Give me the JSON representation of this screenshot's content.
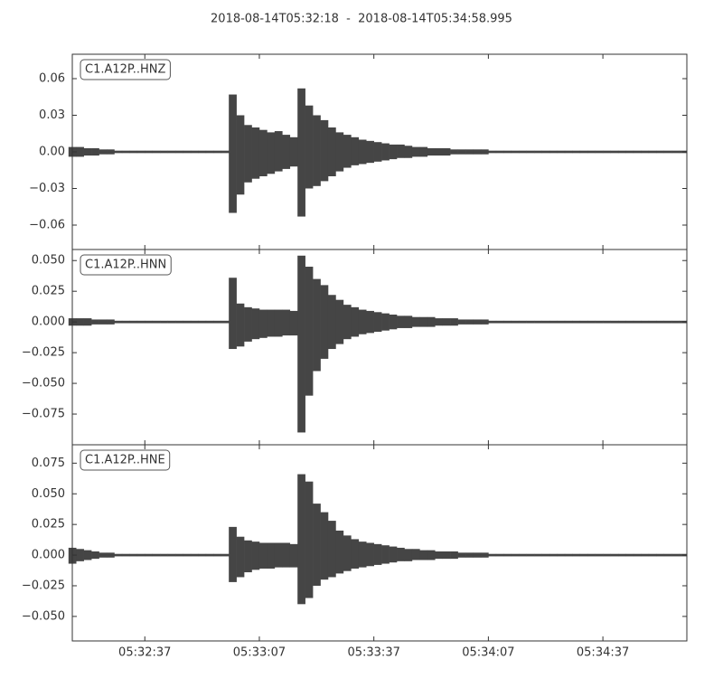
{
  "chart_data": {
    "type": "waveform",
    "title": "2018-08-14T05:32:18  -  2018-08-14T05:34:58.995",
    "xlim": [
      "05:32:18",
      "05:34:58.995"
    ],
    "xticks": [
      "05:32:37",
      "05:33:07",
      "05:33:37",
      "05:34:07",
      "05:34:37"
    ],
    "color": "#454545",
    "x": [
      "05:32:18",
      "05:32:20",
      "05:32:22",
      "05:32:24",
      "05:32:26",
      "05:32:28",
      "05:32:30",
      "05:32:32",
      "05:32:34",
      "05:32:36",
      "05:32:38",
      "05:32:40",
      "05:32:42",
      "05:32:44",
      "05:32:46",
      "05:32:48",
      "05:32:50",
      "05:32:52",
      "05:32:54",
      "05:32:56",
      "05:32:58",
      "05:33:00",
      "05:33:02",
      "05:33:04",
      "05:33:06",
      "05:33:08",
      "05:33:10",
      "05:33:12",
      "05:33:14",
      "05:33:16",
      "05:33:18",
      "05:33:20",
      "05:33:22",
      "05:33:24",
      "05:33:26",
      "05:33:28",
      "05:33:30",
      "05:33:32",
      "05:33:34",
      "05:33:36",
      "05:33:38",
      "05:33:40",
      "05:33:42",
      "05:33:44",
      "05:33:46",
      "05:33:48",
      "05:33:50",
      "05:33:52",
      "05:33:54",
      "05:33:56",
      "05:33:58",
      "05:34:00",
      "05:34:02",
      "05:34:04",
      "05:34:06",
      "05:34:08",
      "05:34:10",
      "05:34:12",
      "05:34:14",
      "05:34:16",
      "05:34:18",
      "05:34:20",
      "05:34:22",
      "05:34:24",
      "05:34:26",
      "05:34:28",
      "05:34:30",
      "05:34:32",
      "05:34:34",
      "05:34:36",
      "05:34:38",
      "05:34:40",
      "05:34:42",
      "05:34:44",
      "05:34:46",
      "05:34:48",
      "05:34:50",
      "05:34:52",
      "05:34:54",
      "05:34:56",
      "05:34:58"
    ],
    "panels": [
      {
        "label": "C1.A12P..HNZ",
        "ylim": [
          -0.08,
          0.08
        ],
        "yticks": [
          0.06,
          0.03,
          {
            "value": 0,
            "label": "0.00"
          },
          {
            "value": -0.03,
            "label": "−0.03"
          },
          {
            "value": -0.06,
            "label": "−0.06"
          }
        ],
        "upper": [
          0.004,
          0.004,
          0.003,
          0.003,
          0.002,
          0.002,
          0.001,
          0.001,
          0.001,
          0.001,
          0.001,
          0.001,
          0.001,
          0.001,
          0.001,
          0.001,
          0.001,
          0.001,
          0.001,
          0.001,
          0.001,
          0.047,
          0.03,
          0.022,
          0.02,
          0.018,
          0.016,
          0.017,
          0.014,
          0.012,
          0.052,
          0.038,
          0.03,
          0.026,
          0.02,
          0.016,
          0.014,
          0.012,
          0.01,
          0.009,
          0.008,
          0.007,
          0.006,
          0.006,
          0.005,
          0.004,
          0.004,
          0.003,
          0.003,
          0.003,
          0.002,
          0.002,
          0.002,
          0.002,
          0.002,
          0.001,
          0.001,
          0.001,
          0.001,
          0.001,
          0.001,
          0.001,
          0.001,
          0.001,
          0.001,
          0.001,
          0.001,
          0.001,
          0.001,
          0.001,
          0.001,
          0.001,
          0.001,
          0.001,
          0.001,
          0.001,
          0.001,
          0.001,
          0.001,
          0.001,
          0.001
        ],
        "lower": [
          -0.004,
          -0.004,
          -0.003,
          -0.003,
          -0.002,
          -0.002,
          -0.001,
          -0.001,
          -0.001,
          -0.001,
          -0.001,
          -0.001,
          -0.001,
          -0.001,
          -0.001,
          -0.001,
          -0.001,
          -0.001,
          -0.001,
          -0.001,
          -0.001,
          -0.05,
          -0.035,
          -0.025,
          -0.022,
          -0.02,
          -0.018,
          -0.016,
          -0.014,
          -0.012,
          -0.053,
          -0.03,
          -0.028,
          -0.024,
          -0.02,
          -0.016,
          -0.013,
          -0.011,
          -0.01,
          -0.009,
          -0.008,
          -0.007,
          -0.006,
          -0.005,
          -0.005,
          -0.004,
          -0.004,
          -0.003,
          -0.003,
          -0.003,
          -0.002,
          -0.002,
          -0.002,
          -0.002,
          -0.002,
          -0.001,
          -0.001,
          -0.001,
          -0.001,
          -0.001,
          -0.001,
          -0.001,
          -0.001,
          -0.001,
          -0.001,
          -0.001,
          -0.001,
          -0.001,
          -0.001,
          -0.001,
          -0.001,
          -0.001,
          -0.001,
          -0.001,
          -0.001,
          -0.001,
          -0.001,
          -0.001,
          -0.001,
          -0.001,
          -0.001
        ]
      },
      {
        "label": "C1.A12P..HNN",
        "ylim": [
          -0.1,
          0.059
        ],
        "yticks": [
          {
            "value": 0.05,
            "label": "0.050"
          },
          0.025,
          {
            "value": 0,
            "label": "0.000"
          },
          {
            "value": -0.025,
            "label": "−0.025"
          },
          {
            "value": -0.05,
            "label": "−0.050"
          },
          {
            "value": -0.075,
            "label": "−0.075"
          }
        ],
        "upper": [
          0.003,
          0.003,
          0.003,
          0.002,
          0.002,
          0.002,
          0.001,
          0.001,
          0.001,
          0.001,
          0.001,
          0.001,
          0.001,
          0.001,
          0.001,
          0.001,
          0.001,
          0.001,
          0.001,
          0.001,
          0.001,
          0.036,
          0.015,
          0.012,
          0.011,
          0.01,
          0.01,
          0.01,
          0.01,
          0.009,
          0.054,
          0.045,
          0.035,
          0.03,
          0.022,
          0.018,
          0.014,
          0.012,
          0.01,
          0.009,
          0.008,
          0.007,
          0.006,
          0.005,
          0.005,
          0.004,
          0.004,
          0.004,
          0.003,
          0.003,
          0.003,
          0.002,
          0.002,
          0.002,
          0.002,
          0.001,
          0.001,
          0.001,
          0.001,
          0.001,
          0.001,
          0.001,
          0.001,
          0.001,
          0.001,
          0.001,
          0.001,
          0.001,
          0.001,
          0.001,
          0.001,
          0.001,
          0.001,
          0.001,
          0.001,
          0.001,
          0.001,
          0.001,
          0.001,
          0.001,
          0.001
        ],
        "lower": [
          -0.003,
          -0.003,
          -0.003,
          -0.002,
          -0.002,
          -0.002,
          -0.001,
          -0.001,
          -0.001,
          -0.001,
          -0.001,
          -0.001,
          -0.001,
          -0.001,
          -0.001,
          -0.001,
          -0.001,
          -0.001,
          -0.001,
          -0.001,
          -0.001,
          -0.022,
          -0.02,
          -0.016,
          -0.014,
          -0.013,
          -0.012,
          -0.012,
          -0.011,
          -0.011,
          -0.09,
          -0.06,
          -0.04,
          -0.03,
          -0.022,
          -0.018,
          -0.014,
          -0.012,
          -0.01,
          -0.009,
          -0.008,
          -0.007,
          -0.006,
          -0.005,
          -0.005,
          -0.004,
          -0.004,
          -0.004,
          -0.003,
          -0.003,
          -0.003,
          -0.002,
          -0.002,
          -0.002,
          -0.002,
          -0.001,
          -0.001,
          -0.001,
          -0.001,
          -0.001,
          -0.001,
          -0.001,
          -0.001,
          -0.001,
          -0.001,
          -0.001,
          -0.001,
          -0.001,
          -0.001,
          -0.001,
          -0.001,
          -0.001,
          -0.001,
          -0.001,
          -0.001,
          -0.001,
          -0.001,
          -0.001,
          -0.001,
          -0.001,
          -0.001
        ]
      },
      {
        "label": "C1.A12P..HNE",
        "ylim": [
          -0.07,
          0.09
        ],
        "yticks": [
          0.075,
          {
            "value": 0.05,
            "label": "0.050"
          },
          0.025,
          {
            "value": 0,
            "label": "0.000"
          },
          {
            "value": -0.025,
            "label": "−0.025"
          },
          {
            "value": -0.05,
            "label": "−0.050"
          }
        ],
        "upper": [
          0.006,
          0.005,
          0.004,
          0.003,
          0.002,
          0.002,
          0.001,
          0.001,
          0.001,
          0.001,
          0.001,
          0.001,
          0.001,
          0.001,
          0.001,
          0.001,
          0.001,
          0.001,
          0.001,
          0.001,
          0.001,
          0.023,
          0.015,
          0.012,
          0.011,
          0.01,
          0.01,
          0.01,
          0.01,
          0.009,
          0.066,
          0.06,
          0.042,
          0.035,
          0.028,
          0.02,
          0.016,
          0.013,
          0.011,
          0.01,
          0.009,
          0.008,
          0.007,
          0.006,
          0.005,
          0.005,
          0.004,
          0.004,
          0.003,
          0.003,
          0.003,
          0.002,
          0.002,
          0.002,
          0.002,
          0.001,
          0.001,
          0.001,
          0.001,
          0.001,
          0.001,
          0.001,
          0.001,
          0.001,
          0.001,
          0.001,
          0.001,
          0.001,
          0.001,
          0.001,
          0.001,
          0.001,
          0.001,
          0.001,
          0.001,
          0.001,
          0.001,
          0.001,
          0.001,
          0.001,
          0.001
        ],
        "lower": [
          -0.007,
          -0.005,
          -0.004,
          -0.003,
          -0.002,
          -0.002,
          -0.001,
          -0.001,
          -0.001,
          -0.001,
          -0.001,
          -0.001,
          -0.001,
          -0.001,
          -0.001,
          -0.001,
          -0.001,
          -0.001,
          -0.001,
          -0.001,
          -0.001,
          -0.022,
          -0.018,
          -0.014,
          -0.012,
          -0.011,
          -0.011,
          -0.01,
          -0.01,
          -0.01,
          -0.04,
          -0.035,
          -0.025,
          -0.02,
          -0.018,
          -0.015,
          -0.013,
          -0.011,
          -0.01,
          -0.009,
          -0.008,
          -0.007,
          -0.006,
          -0.005,
          -0.005,
          -0.004,
          -0.004,
          -0.004,
          -0.003,
          -0.003,
          -0.003,
          -0.002,
          -0.002,
          -0.002,
          -0.002,
          -0.001,
          -0.001,
          -0.001,
          -0.001,
          -0.001,
          -0.001,
          -0.001,
          -0.001,
          -0.001,
          -0.001,
          -0.001,
          -0.001,
          -0.001,
          -0.001,
          -0.001,
          -0.001,
          -0.001,
          -0.001,
          -0.001,
          -0.001,
          -0.001,
          -0.001,
          -0.001,
          -0.001,
          -0.001,
          -0.001
        ]
      }
    ]
  }
}
